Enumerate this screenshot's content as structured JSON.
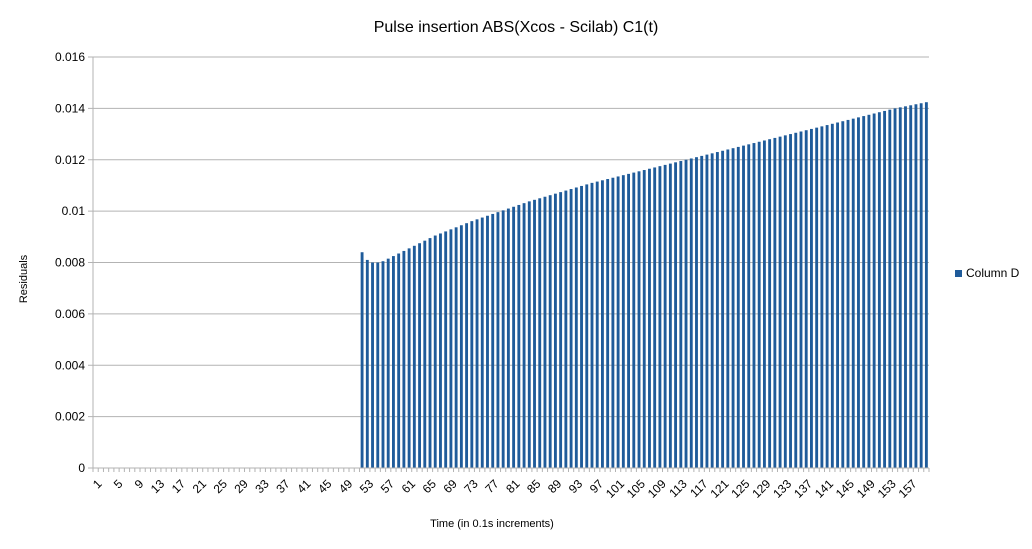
{
  "chart_data": {
    "type": "bar",
    "title": "Pulse insertion ABS(Xcos - Scilab) C1(t)",
    "xlabel": "Time (in 0.1s increments)",
    "ylabel": "Residuals",
    "ylim": [
      0,
      0.016
    ],
    "yticks": [
      "0",
      "0.002",
      "0.004",
      "0.006",
      "0.008",
      "0.01",
      "0.012",
      "0.014",
      "0.016"
    ],
    "grid": true,
    "legend_position": "right",
    "series": [
      {
        "name": "Column D",
        "color": "#1f5b9a",
        "values": [
          0,
          0,
          0,
          0,
          0,
          0,
          0,
          0,
          0,
          0,
          0,
          0,
          0,
          0,
          0,
          0,
          0,
          0,
          0,
          0,
          0,
          0,
          0,
          0,
          0,
          0,
          0,
          0,
          0,
          0,
          0,
          0,
          0,
          0,
          0,
          0,
          0,
          0,
          0,
          0,
          0,
          0,
          0,
          0,
          0,
          0,
          0,
          0,
          0,
          0,
          0,
          0.0084,
          0.0081,
          0.008,
          0.008,
          0.00805,
          0.00815,
          0.00825,
          0.00835,
          0.00845,
          0.00855,
          0.00865,
          0.00875,
          0.00885,
          0.00895,
          0.00905,
          0.00913,
          0.00921,
          0.00929,
          0.00937,
          0.00945,
          0.00953,
          0.00961,
          0.00968,
          0.00975,
          0.00982,
          0.00989,
          0.00996,
          0.01003,
          0.0101,
          0.01017,
          0.01024,
          0.01031,
          0.01038,
          0.01044,
          0.0105,
          0.01056,
          0.01062,
          0.01068,
          0.01074,
          0.0108,
          0.01086,
          0.01092,
          0.01098,
          0.01104,
          0.0111,
          0.01115,
          0.0112,
          0.01125,
          0.0113,
          0.01135,
          0.0114,
          0.01145,
          0.0115,
          0.01155,
          0.0116,
          0.01165,
          0.0117,
          0.01175,
          0.0118,
          0.01185,
          0.0119,
          0.01195,
          0.012,
          0.01205,
          0.0121,
          0.01215,
          0.0122,
          0.01225,
          0.0123,
          0.01235,
          0.0124,
          0.01245,
          0.0125,
          0.01255,
          0.0126,
          0.01265,
          0.0127,
          0.01275,
          0.0128,
          0.01285,
          0.0129,
          0.01295,
          0.013,
          0.01305,
          0.0131,
          0.01315,
          0.0132,
          0.01325,
          0.0133,
          0.01335,
          0.0134,
          0.01345,
          0.0135,
          0.01355,
          0.0136,
          0.01365,
          0.0137,
          0.01375,
          0.0138,
          0.01385,
          0.0139,
          0.01395,
          0.014,
          0.01404,
          0.01408,
          0.01412,
          0.01416,
          0.0142,
          0.01424
        ]
      }
    ]
  }
}
